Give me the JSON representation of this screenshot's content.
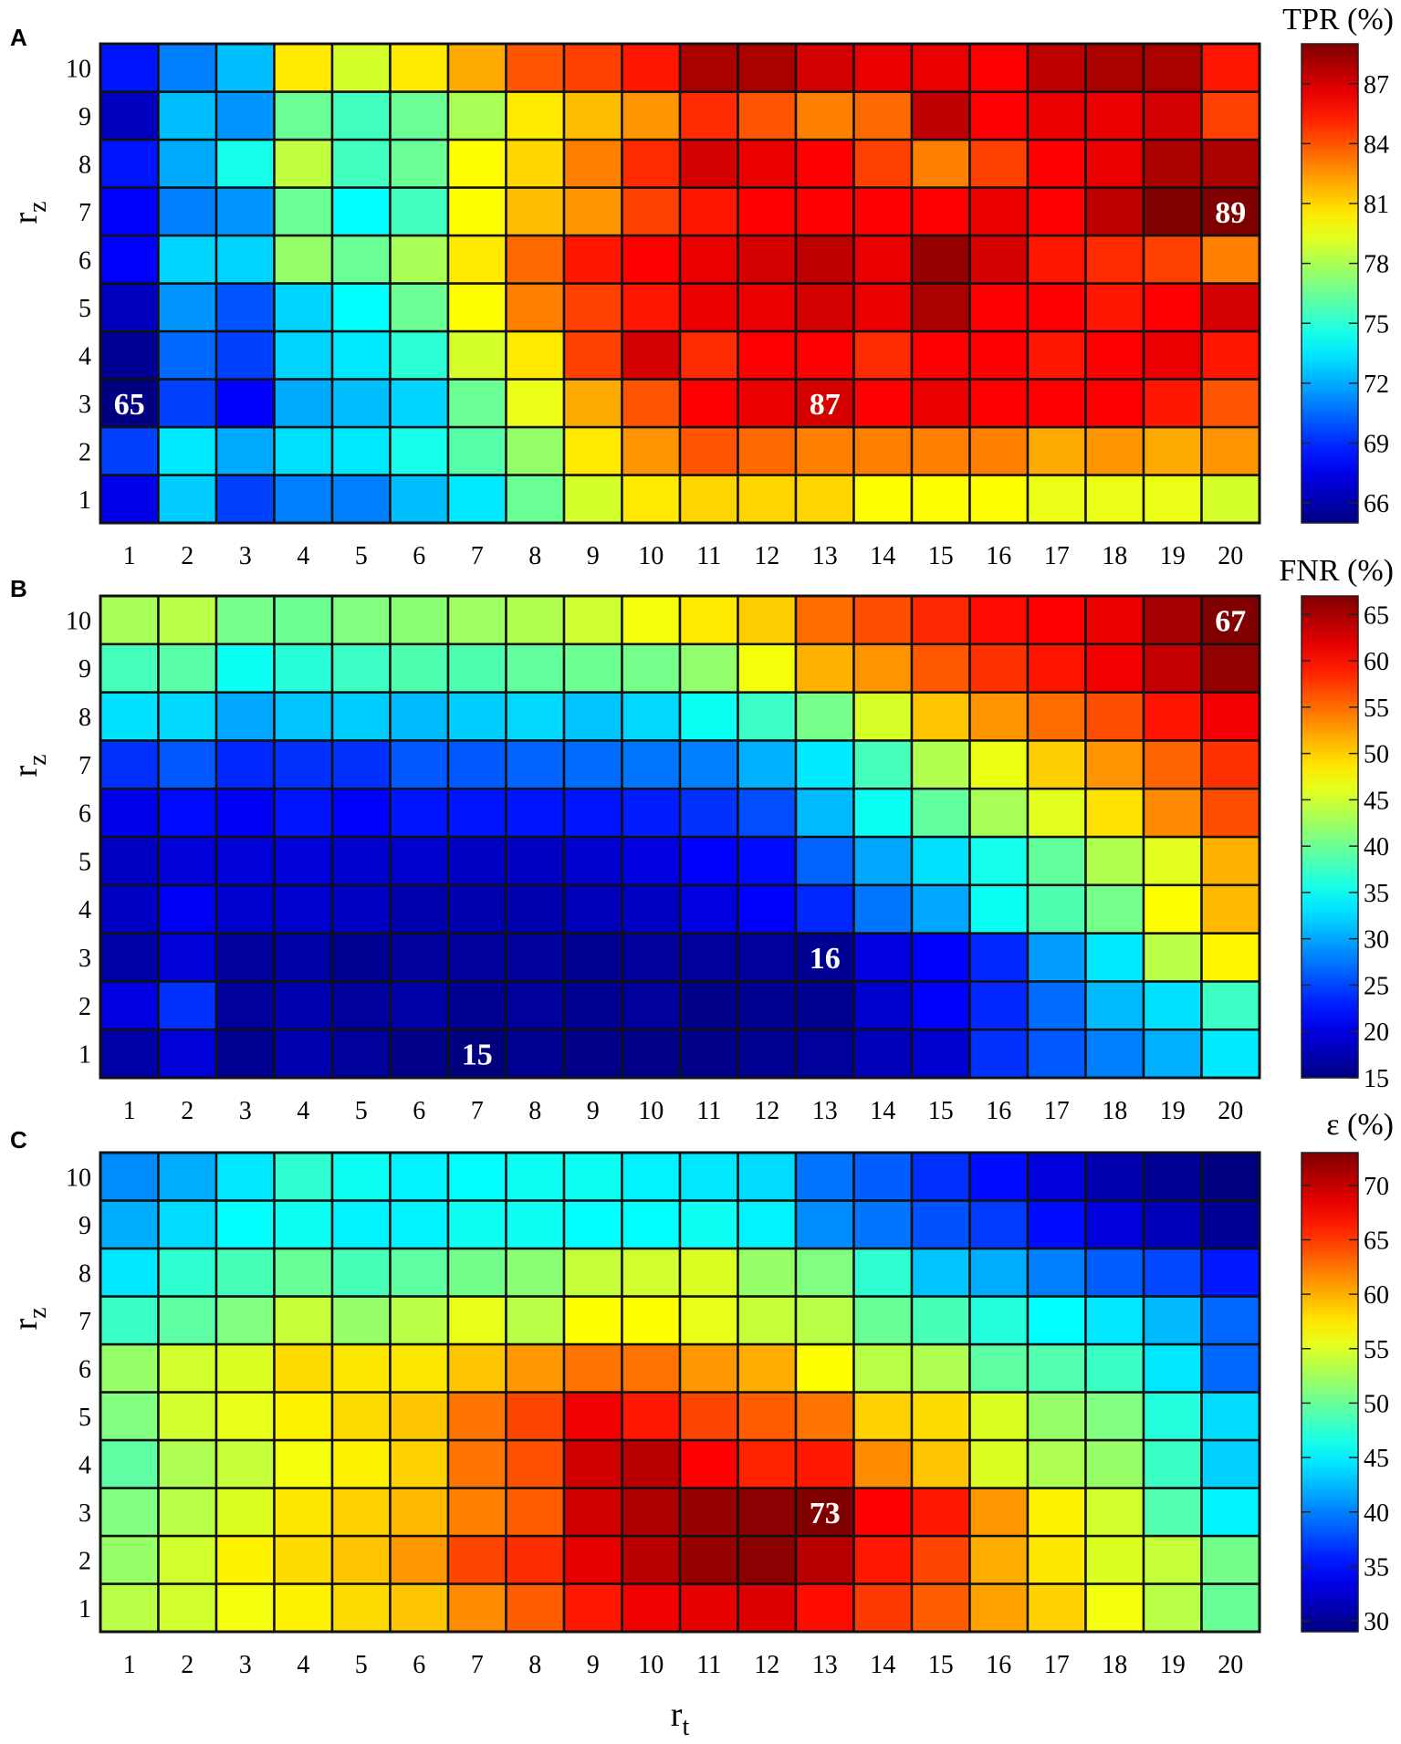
{
  "chart_data": [
    {
      "type": "heatmap",
      "panel_label": "A",
      "xlabel": "",
      "ylabel": "r",
      "ylabel_sub": "z",
      "x": [
        1,
        2,
        3,
        4,
        5,
        6,
        7,
        8,
        9,
        10,
        11,
        12,
        13,
        14,
        15,
        16,
        17,
        18,
        19,
        20
      ],
      "y": [
        1,
        2,
        3,
        4,
        5,
        6,
        7,
        8,
        9,
        10
      ],
      "colorbar": {
        "title": "TPR (%)",
        "range": [
          65,
          89
        ],
        "ticks": [
          66,
          69,
          72,
          75,
          78,
          81,
          84,
          87
        ]
      },
      "values_rows_rz1_to_rz10": [
        [
          67.5,
          72.8,
          69.5,
          71.0,
          71.0,
          72.5,
          73.5,
          76.5,
          79.0,
          80.5,
          81.0,
          81.0,
          81.0,
          80.0,
          80.0,
          80.0,
          79.5,
          79.5,
          79.5,
          79.0
        ],
        [
          69.5,
          73.5,
          72.0,
          73.3,
          73.5,
          74.5,
          76.0,
          77.5,
          80.5,
          82.5,
          84.0,
          83.5,
          83.0,
          83.0,
          83.0,
          83.0,
          82.0,
          82.5,
          82.0,
          82.5
        ],
        [
          65.0,
          69.5,
          68.0,
          72.0,
          72.5,
          73.0,
          76.5,
          79.5,
          82.0,
          84.0,
          86.0,
          86.5,
          87.0,
          86.0,
          86.5,
          86.0,
          86.0,
          86.0,
          85.5,
          84.0
        ],
        [
          65.5,
          70.5,
          69.5,
          73.0,
          73.5,
          75.0,
          79.0,
          80.5,
          84.5,
          87.0,
          85.0,
          86.0,
          86.0,
          85.0,
          86.0,
          86.0,
          85.5,
          86.0,
          86.5,
          85.5
        ],
        [
          66.5,
          71.5,
          70.0,
          73.0,
          74.0,
          76.5,
          80.0,
          83.0,
          84.5,
          85.5,
          86.5,
          86.5,
          87.0,
          86.5,
          88.0,
          86.0,
          86.0,
          85.5,
          86.0,
          87.0
        ],
        [
          68.0,
          73.0,
          73.0,
          77.5,
          76.5,
          78.0,
          80.5,
          83.5,
          85.5,
          86.0,
          86.5,
          87.0,
          87.5,
          86.5,
          88.5,
          87.0,
          85.5,
          85.0,
          84.5,
          83.0
        ],
        [
          68.0,
          71.0,
          71.5,
          76.5,
          74.0,
          75.5,
          80.0,
          81.5,
          82.5,
          84.5,
          85.5,
          86.0,
          86.0,
          86.0,
          86.0,
          86.5,
          86.0,
          87.5,
          89.0,
          89.0
        ],
        [
          68.5,
          72.0,
          74.5,
          78.5,
          75.5,
          76.5,
          80.0,
          81.0,
          83.0,
          85.0,
          87.0,
          86.5,
          86.0,
          84.5,
          83.0,
          84.5,
          86.0,
          86.5,
          88.0,
          88.0
        ],
        [
          66.5,
          72.5,
          71.5,
          76.5,
          75.5,
          76.5,
          78.0,
          80.5,
          81.5,
          82.5,
          85.0,
          84.0,
          83.0,
          83.5,
          87.5,
          86.0,
          86.5,
          86.5,
          87.0,
          84.5
        ],
        [
          68.5,
          71.0,
          72.5,
          80.5,
          79.0,
          80.5,
          82.0,
          84.0,
          84.5,
          85.5,
          88.0,
          88.0,
          87.0,
          86.5,
          86.5,
          86.0,
          87.5,
          88.0,
          88.0,
          85.5
        ]
      ],
      "annotations": [
        {
          "x": 1,
          "y": 3,
          "text": "65"
        },
        {
          "x": 13,
          "y": 3,
          "text": "87"
        },
        {
          "x": 20,
          "y": 7,
          "text": "89"
        }
      ]
    },
    {
      "type": "heatmap",
      "panel_label": "B",
      "xlabel": "",
      "ylabel": "r",
      "ylabel_sub": "z",
      "x": [
        1,
        2,
        3,
        4,
        5,
        6,
        7,
        8,
        9,
        10,
        11,
        12,
        13,
        14,
        15,
        16,
        17,
        18,
        19,
        20
      ],
      "y": [
        1,
        2,
        3,
        4,
        5,
        6,
        7,
        8,
        9,
        10
      ],
      "colorbar": {
        "title": "FNR (%)",
        "range": [
          15,
          67
        ],
        "ticks": [
          15,
          20,
          25,
          30,
          35,
          40,
          45,
          50,
          55,
          60,
          65
        ]
      },
      "values_rows_rz1_to_rz10": [
        [
          17.0,
          19.5,
          16.0,
          17.5,
          16.5,
          15.5,
          15.0,
          16.0,
          15.5,
          15.5,
          15.5,
          16.0,
          16.5,
          18.0,
          19.0,
          24.0,
          26.0,
          28.0,
          30.5,
          33.5
        ],
        [
          20.0,
          24.0,
          16.5,
          17.5,
          16.5,
          17.0,
          16.0,
          16.5,
          16.0,
          16.5,
          15.5,
          16.0,
          16.0,
          19.0,
          21.5,
          23.5,
          27.0,
          31.0,
          33.0,
          37.5
        ],
        [
          17.0,
          19.5,
          16.5,
          17.0,
          16.0,
          16.5,
          16.5,
          16.5,
          16.0,
          16.5,
          16.5,
          16.5,
          16.0,
          20.0,
          21.5,
          23.5,
          29.5,
          33.5,
          44.0,
          48.0
        ],
        [
          18.5,
          21.0,
          19.0,
          19.0,
          18.5,
          17.5,
          17.5,
          17.5,
          18.0,
          18.5,
          20.0,
          21.5,
          23.5,
          27.5,
          30.0,
          35.0,
          38.5,
          40.5,
          47.5,
          51.0
        ],
        [
          18.5,
          19.5,
          19.5,
          19.5,
          19.0,
          19.0,
          18.5,
          18.5,
          19.0,
          20.0,
          21.5,
          22.0,
          26.5,
          30.0,
          33.0,
          35.5,
          39.5,
          43.5,
          46.0,
          51.5
        ],
        [
          20.5,
          22.0,
          21.0,
          22.5,
          21.5,
          22.5,
          22.5,
          22.5,
          22.5,
          23.0,
          24.0,
          25.5,
          31.0,
          35.0,
          39.5,
          43.0,
          46.0,
          49.0,
          53.5,
          56.5
        ],
        [
          24.0,
          26.0,
          23.5,
          24.0,
          24.0,
          26.0,
          26.0,
          26.5,
          27.0,
          27.5,
          28.0,
          30.5,
          33.5,
          38.0,
          43.5,
          46.5,
          50.0,
          53.0,
          55.5,
          58.0
        ],
        [
          33.0,
          32.5,
          30.0,
          31.5,
          32.0,
          31.0,
          32.0,
          32.5,
          31.5,
          32.5,
          35.0,
          37.5,
          40.5,
          45.5,
          50.5,
          53.0,
          55.0,
          56.5,
          59.5,
          61.0
        ],
        [
          38.0,
          39.0,
          35.0,
          36.5,
          37.5,
          38.5,
          38.5,
          39.5,
          40.0,
          40.5,
          42.0,
          47.0,
          51.5,
          53.0,
          56.0,
          58.0,
          59.5,
          61.0,
          63.5,
          66.0
        ],
        [
          43.0,
          44.0,
          40.5,
          40.0,
          41.0,
          41.5,
          42.5,
          43.5,
          45.0,
          47.0,
          48.5,
          50.0,
          55.0,
          56.5,
          58.5,
          60.0,
          60.5,
          61.5,
          65.0,
          67.0
        ]
      ],
      "annotations": [
        {
          "x": 7,
          "y": 1,
          "text": "15"
        },
        {
          "x": 13,
          "y": 3,
          "text": "16"
        },
        {
          "x": 20,
          "y": 10,
          "text": "67"
        }
      ]
    },
    {
      "type": "heatmap",
      "panel_label": "C",
      "xlabel": "r",
      "xlabel_sub": "t",
      "ylabel": "r",
      "ylabel_sub": "z",
      "x": [
        1,
        2,
        3,
        4,
        5,
        6,
        7,
        8,
        9,
        10,
        11,
        12,
        13,
        14,
        15,
        16,
        17,
        18,
        19,
        20
      ],
      "y": [
        1,
        2,
        3,
        4,
        5,
        6,
        7,
        8,
        9,
        10
      ],
      "colorbar": {
        "title": "ε (%)",
        "range": [
          29,
          73
        ],
        "ticks": [
          30,
          35,
          40,
          45,
          50,
          55,
          60,
          65,
          70
        ]
      },
      "values_rows_rz1_to_rz10": [
        [
          53.5,
          54.5,
          56.0,
          57.0,
          58.0,
          59.0,
          61.5,
          63.5,
          66.5,
          68.0,
          68.5,
          69.0,
          67.0,
          65.0,
          63.5,
          60.5,
          58.5,
          56.0,
          53.5,
          50.0
        ],
        [
          52.0,
          54.5,
          57.0,
          58.0,
          59.0,
          61.0,
          64.5,
          65.5,
          68.5,
          70.5,
          72.0,
          72.5,
          70.5,
          66.5,
          64.5,
          60.0,
          57.5,
          55.0,
          54.0,
          50.5
        ],
        [
          51.0,
          53.5,
          55.0,
          57.5,
          58.5,
          59.5,
          62.0,
          63.5,
          69.5,
          71.0,
          72.0,
          72.5,
          73.0,
          67.5,
          66.5,
          61.0,
          57.0,
          54.5,
          49.0,
          45.0
        ],
        [
          49.5,
          53.0,
          54.0,
          56.0,
          57.0,
          58.5,
          62.5,
          64.0,
          69.5,
          70.5,
          67.5,
          66.0,
          66.5,
          61.5,
          59.0,
          55.0,
          53.0,
          52.0,
          48.0,
          43.5
        ],
        [
          51.0,
          54.5,
          55.5,
          57.0,
          58.0,
          59.0,
          62.5,
          64.5,
          68.0,
          66.5,
          64.5,
          63.5,
          62.5,
          58.5,
          58.0,
          55.0,
          52.0,
          51.0,
          47.0,
          44.0
        ],
        [
          52.0,
          54.5,
          55.0,
          58.0,
          57.5,
          57.5,
          59.0,
          61.0,
          62.5,
          62.5,
          61.0,
          60.0,
          56.5,
          53.5,
          53.0,
          49.5,
          49.0,
          48.0,
          44.5,
          39.0
        ],
        [
          48.0,
          49.5,
          51.0,
          54.0,
          52.0,
          53.5,
          55.5,
          53.5,
          56.5,
          56.5,
          55.5,
          54.0,
          53.5,
          50.0,
          48.5,
          47.0,
          45.5,
          44.5,
          42.5,
          39.0
        ],
        [
          44.5,
          47.5,
          48.5,
          50.0,
          48.5,
          49.5,
          50.5,
          51.5,
          54.0,
          54.5,
          55.0,
          52.0,
          51.0,
          47.5,
          43.0,
          42.0,
          40.0,
          38.5,
          37.5,
          35.5
        ],
        [
          42.0,
          44.0,
          45.5,
          46.0,
          45.0,
          45.0,
          46.0,
          46.0,
          45.5,
          45.5,
          46.0,
          45.0,
          40.5,
          39.5,
          38.0,
          37.0,
          35.0,
          33.0,
          31.5,
          30.0
        ],
        [
          40.5,
          42.0,
          44.5,
          47.5,
          46.0,
          45.0,
          45.5,
          46.0,
          46.0,
          45.0,
          44.5,
          44.0,
          39.5,
          38.5,
          36.5,
          35.0,
          33.0,
          31.0,
          30.0,
          29.0
        ]
      ],
      "annotations": [
        {
          "x": 13,
          "y": 3,
          "text": "73"
        }
      ]
    }
  ]
}
